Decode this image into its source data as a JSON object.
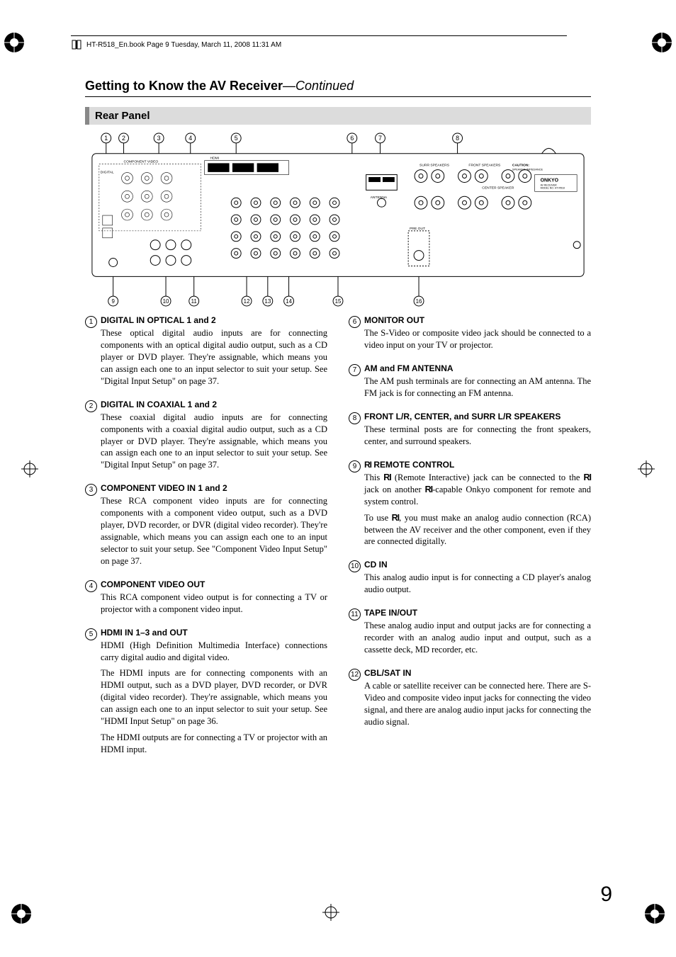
{
  "header": {
    "text": "HT-R518_En.book  Page 9  Tuesday, March 11, 2008  11:31 AM"
  },
  "title": {
    "main": "Getting to Know the AV Receiver",
    "cont": "—Continued"
  },
  "subsection": "Rear Panel",
  "callouts_top": [
    "1",
    "2",
    "3",
    "4",
    "5",
    "6",
    "7",
    "8"
  ],
  "callouts_bottom": [
    "9",
    "10",
    "11",
    "12",
    "13",
    "14",
    "15",
    "16"
  ],
  "diagram_labels": {
    "surr": "SURR SPEAKERS",
    "front": "FRONT SPEAKERS",
    "caution": "CAUTION:",
    "impedance": "SPEAKER IMPEDANCE",
    "center": "CENTER SPEAKER",
    "brand": "ONKYO",
    "model1": "AV RECEIVER",
    "model2": "MODEL NO. HT-R518",
    "antenna": "ANTENNA",
    "preout": "PRE OUT",
    "compvideo": "COMPONENT VIDEO",
    "digital": "DIGITAL",
    "hdmi": "HDMI",
    "remote": "REMOTE CONTROL",
    "cd": "CD",
    "tape": "TAPE",
    "cblsat": "CBL/SAT",
    "vcrdvr": "VCR/DVR",
    "dvd": "DVD",
    "subwoofer": "SUB WOOFER",
    "monitor": "MONITOR"
  },
  "left_items": [
    {
      "num": "1",
      "title": "DIGITAL IN OPTICAL 1 and 2",
      "paras": [
        "These optical digital audio inputs are for connecting components with an optical digital audio output, such as a CD player or DVD player. They're assignable, which means you can assign each one to an input selector to suit your setup. See \"Digital Input Setup\" on page 37."
      ]
    },
    {
      "num": "2",
      "title": "DIGITAL IN COAXIAL 1 and 2",
      "paras": [
        "These coaxial digital audio inputs are for connecting components with a coaxial digital audio output, such as a CD player or DVD player. They're assignable, which means you can assign each one to an input selector to suit your setup. See \"Digital Input Setup\" on page 37."
      ]
    },
    {
      "num": "3",
      "title": "COMPONENT VIDEO IN 1 and 2",
      "paras": [
        "These RCA component video inputs are for connecting components with a component video output, such as a DVD player, DVD recorder, or DVR (digital video recorder). They're assignable, which means you can assign each one to an input selector to suit your setup. See \"Component Video Input Setup\" on page 37."
      ]
    },
    {
      "num": "4",
      "title": "COMPONENT VIDEO OUT",
      "paras": [
        "This RCA component video output is for connecting a TV or projector with a component video input."
      ]
    },
    {
      "num": "5",
      "title": "HDMI IN 1–3 and OUT",
      "paras": [
        "HDMI (High Definition Multimedia Interface) connections carry digital audio and digital video.",
        "The HDMI inputs are for connecting components with an HDMI output, such as a DVD player, DVD recorder, or DVR (digital video recorder). They're assignable, which means you can assign each one to an input selector to suit your setup. See \"HDMI Input Setup\" on page 36.",
        "The HDMI outputs are for connecting a TV or projector with an HDMI input."
      ]
    }
  ],
  "right_items": [
    {
      "num": "6",
      "title": "MONITOR OUT",
      "paras": [
        "The S-Video or composite video jack should be connected to a video input on your TV or projector."
      ]
    },
    {
      "num": "7",
      "title": "AM and FM ANTENNA",
      "paras": [
        "The AM push terminals are for connecting an AM antenna. The FM jack is for connecting an FM antenna."
      ]
    },
    {
      "num": "8",
      "title": "FRONT L/R, CENTER, and SURR L/R SPEAKERS",
      "paras": [
        "These terminal posts are for connecting the front speakers, center, and surround speakers."
      ]
    },
    {
      "num": "9",
      "title_html": true,
      "title": "REMOTE CONTROL",
      "paras_html": [
        "This <span class='ri-glyph'>RI</span> (Remote Interactive) jack can be connected to the <span class='ri-glyph'>RI</span> jack on another <span class='ri-glyph'>RI</span>-capable Onkyo component for remote and system control.",
        "To use <span class='ri-glyph'>RI</span>, you must make an analog audio connection (RCA) between the AV receiver and the other component, even if they are connected digitally."
      ]
    },
    {
      "num": "10",
      "title": "CD IN",
      "paras": [
        "This analog audio input is for connecting a CD player's analog audio output."
      ]
    },
    {
      "num": "11",
      "title": "TAPE IN/OUT",
      "paras": [
        "These analog audio input and output jacks are for connecting a recorder with an analog audio input and output, such as a cassette deck, MD recorder, etc."
      ]
    },
    {
      "num": "12",
      "title": "CBL/SAT IN",
      "paras": [
        "A cable or satellite receiver can be connected here. There are S-Video and composite video input jacks for connecting the video signal, and there are analog audio input jacks for connecting the audio signal."
      ]
    }
  ],
  "page_number": "9",
  "colors": {
    "bg": "#ffffff",
    "text": "#000000",
    "sub_bg": "#dcdcdc",
    "sub_border": "#888888"
  }
}
